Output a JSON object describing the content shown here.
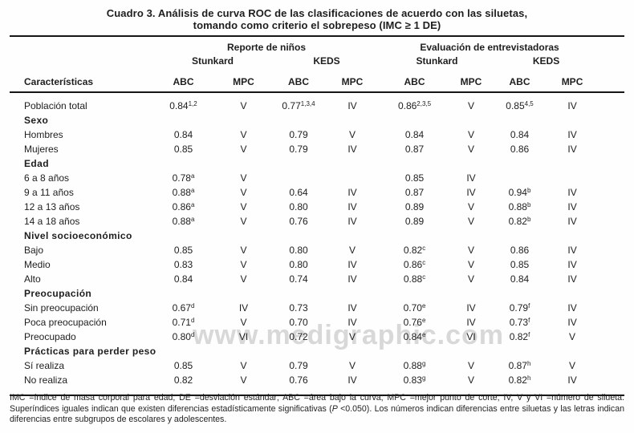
{
  "title": {
    "line1": "Cuadro 3. Análisis de curva ROC de las clasificaciones de acuerdo con las siluetas,",
    "line2": "tomando como criterio el sobrepeso (IMC ≥ 1 DE)"
  },
  "watermark": "www.medigraphic.com",
  "table": {
    "col_header": "Características",
    "groups": [
      "Reporte de niños",
      "Evaluación de entrevistadoras"
    ],
    "subgroups": [
      "Stunkard",
      "KEDS",
      "Stunkard",
      "KEDS"
    ],
    "metric_labels": [
      "ABC",
      "MPC",
      "ABC",
      "MPC",
      "ABC",
      "MPC",
      "ABC",
      "MPC"
    ],
    "rows": [
      {
        "type": "data",
        "label": "Población total",
        "cells": [
          "0.84^1,2",
          "V",
          "0.77^1,3,4",
          "IV",
          "0.86^2,3,5",
          "V",
          "0.85^4,5",
          "IV"
        ]
      },
      {
        "type": "group",
        "label": "Sexo",
        "cells": [
          "",
          "",
          "",
          "",
          "",
          "",
          "",
          ""
        ]
      },
      {
        "type": "data",
        "label": "Hombres",
        "cells": [
          "0.84",
          "V",
          "0.79",
          "V",
          "0.84",
          "V",
          "0.84",
          "IV"
        ]
      },
      {
        "type": "data",
        "label": "Mujeres",
        "cells": [
          "0.85",
          "V",
          "0.79",
          "IV",
          "0.87",
          "V",
          "0.86",
          "IV"
        ]
      },
      {
        "type": "group",
        "label": "Edad",
        "cells": [
          "",
          "",
          "",
          "",
          "",
          "",
          "",
          ""
        ]
      },
      {
        "type": "data",
        "label": "6 a 8 años",
        "cells": [
          "0.78^a",
          "V",
          "",
          "",
          "0.85",
          "IV",
          "",
          ""
        ]
      },
      {
        "type": "data",
        "label": "9 a 11 años",
        "cells": [
          "0.88^a",
          "V",
          "0.64",
          "IV",
          "0.87",
          "IV",
          "0.94^b",
          "IV"
        ]
      },
      {
        "type": "data",
        "label": "12 a 13 años",
        "cells": [
          "0.86^a",
          "V",
          "0.80",
          "IV",
          "0.89",
          "V",
          "0.88^b",
          "IV"
        ]
      },
      {
        "type": "data",
        "label": "14 a 18 años",
        "cells": [
          "0.88^a",
          "V",
          "0.76",
          "IV",
          "0.89",
          "V",
          "0.82^b",
          "IV"
        ]
      },
      {
        "type": "group",
        "label": "Nivel socioeconómico",
        "cells": [
          "",
          "",
          "",
          "",
          "",
          "",
          "",
          ""
        ]
      },
      {
        "type": "data",
        "label": "Bajo",
        "cells": [
          "0.85",
          "V",
          "0.80",
          "V",
          "0.82^c",
          "V",
          "0.86",
          "IV"
        ]
      },
      {
        "type": "data",
        "label": "Medio",
        "cells": [
          "0.83",
          "V",
          "0.80",
          "IV",
          "0.86^c",
          "V",
          "0.85",
          "IV"
        ]
      },
      {
        "type": "data",
        "label": "Alto",
        "cells": [
          "0.84",
          "V",
          "0.74",
          "IV",
          "0.88^c",
          "V",
          "0.84",
          "IV"
        ]
      },
      {
        "type": "group",
        "label": "Preocupación",
        "cells": [
          "",
          "",
          "",
          "",
          "",
          "",
          "",
          ""
        ]
      },
      {
        "type": "data",
        "label": "Sin preocupación",
        "cells": [
          "0.67^d",
          "IV",
          "0.73",
          "IV",
          "0.70^e",
          "IV",
          "0.79^f",
          "IV"
        ]
      },
      {
        "type": "data",
        "label": "Poca preocupación",
        "cells": [
          "0.71^d",
          "V",
          "0.70",
          "IV",
          "0.76^e",
          "IV",
          "0.73^f",
          "IV"
        ]
      },
      {
        "type": "data",
        "label": "Preocupado",
        "cells": [
          "0.80^d",
          "VI",
          "0.72",
          "V",
          "0.84^e",
          "VI",
          "0.82^f",
          "V"
        ]
      },
      {
        "type": "group",
        "label": "Prácticas para perder peso",
        "cells": [
          "",
          "",
          "",
          "",
          "",
          "",
          "",
          ""
        ]
      },
      {
        "type": "data",
        "label": "Sí realiza",
        "cells": [
          "0.85",
          "V",
          "0.79",
          "V",
          "0.88^g",
          "V",
          "0.87^h",
          "V"
        ]
      },
      {
        "type": "data",
        "label": "No realiza",
        "cells": [
          "0.82",
          "V",
          "0.76",
          "IV",
          "0.83^g",
          "V",
          "0.82^h",
          "IV"
        ]
      }
    ]
  },
  "footnote": {
    "part1": "IMC =índice de masa corporal para edad; DE =desviación estándar; ABC =área bajo la curva; MPC =mejor punto de corte; IV, V y VI =número de silueta. Superíndices iguales indican que existen diferencias estadísticamente significativas (",
    "italic_p": "P",
    "part2": " <0.050). Los números indican diferencias entre siluetas y las letras indican diferencias entre subgrupos de escolares y adolescentes."
  },
  "colors": {
    "text": "#1e1e1e",
    "rule": "#161616",
    "watermark": "#d8d8d8",
    "background": "#fefefe"
  }
}
